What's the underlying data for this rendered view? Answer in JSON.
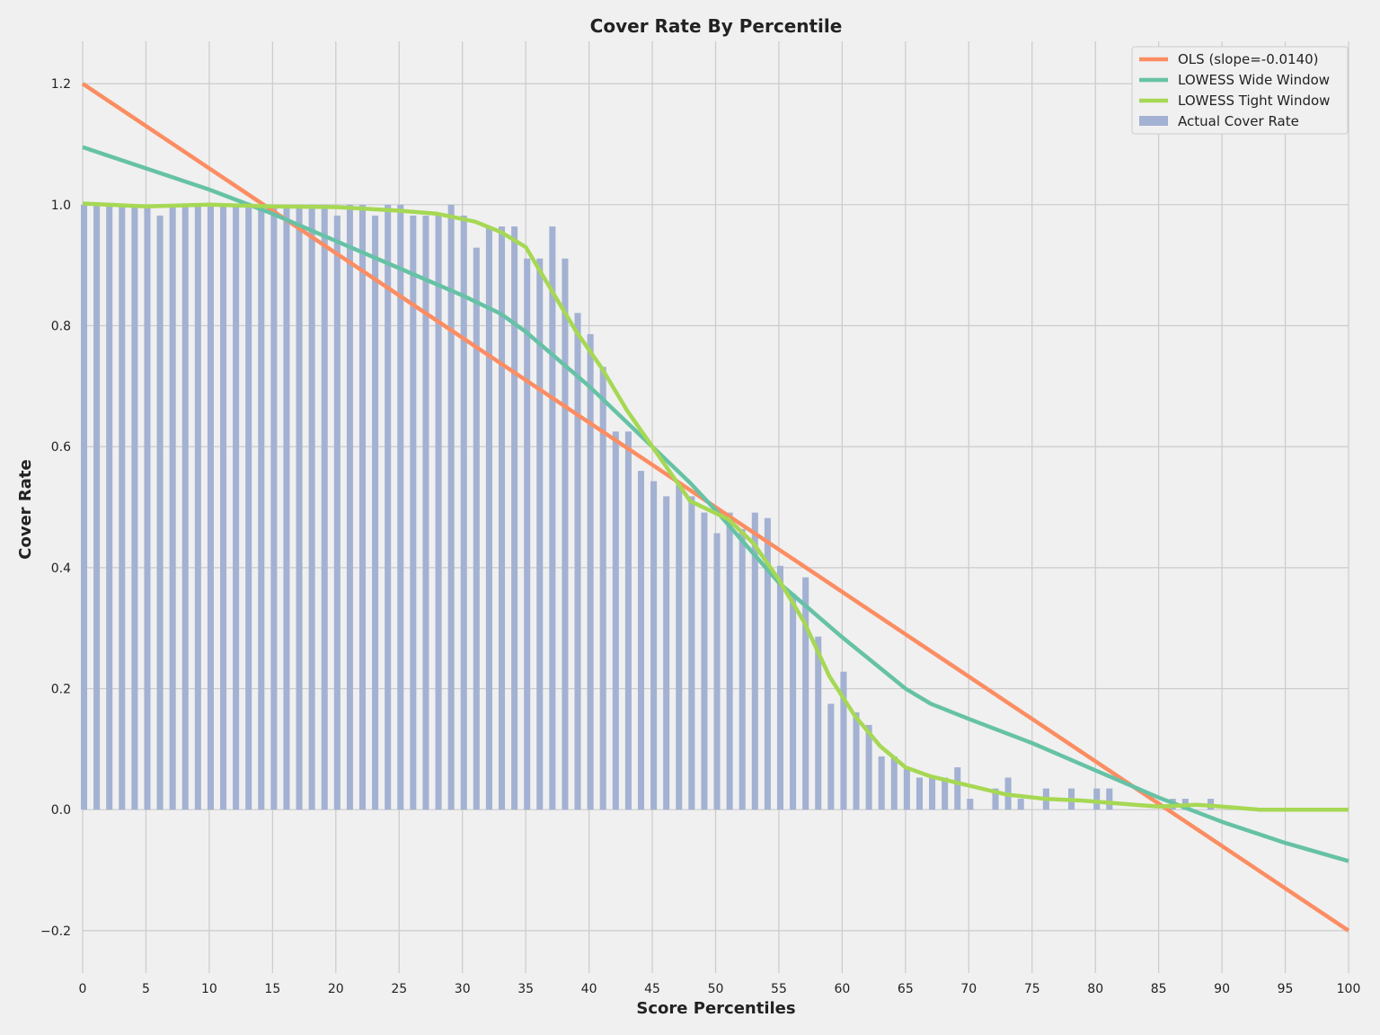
{
  "chart_data": {
    "type": "bar",
    "title": "Cover Rate By Percentile",
    "xlabel": "Score Percentiles",
    "ylabel": "Cover Rate",
    "xlim": [
      0,
      100
    ],
    "ylim": [
      -0.27,
      1.27
    ],
    "x_ticks": [
      0,
      5,
      10,
      15,
      20,
      25,
      30,
      35,
      40,
      45,
      50,
      55,
      60,
      65,
      70,
      75,
      80,
      85,
      90,
      95,
      100
    ],
    "x_tick_labels": [
      "0",
      "5",
      "10",
      "15",
      "20",
      "25",
      "30",
      "35",
      "40",
      "45",
      "50",
      "55",
      "60",
      "65",
      "70",
      "75",
      "80",
      "85",
      "90",
      "95",
      "100"
    ],
    "y_ticks": [
      -0.2,
      0.0,
      0.2,
      0.4,
      0.6,
      0.8,
      1.0,
      1.2
    ],
    "y_tick_labels": [
      "−0.2",
      "0.0",
      "0.2",
      "0.4",
      "0.6",
      "0.8",
      "1.0",
      "1.2"
    ],
    "grid": true,
    "legend_position": "top-right",
    "legend": [
      "OLS (slope=-0.0140)",
      "LOWESS Wide Window",
      "LOWESS Tight Window",
      "Actual Cover Rate"
    ],
    "bars": {
      "name": "Actual Cover Rate",
      "color": "#a3b1d2",
      "x": [
        0,
        1,
        2,
        3,
        4,
        5,
        6,
        7,
        8,
        9,
        10,
        11,
        12,
        13,
        14,
        15,
        16,
        17,
        18,
        19,
        20,
        21,
        22,
        23,
        24,
        25,
        26,
        27,
        28,
        29,
        30,
        31,
        32,
        33,
        34,
        35,
        36,
        37,
        38,
        39,
        40,
        41,
        42,
        43,
        44,
        45,
        46,
        47,
        48,
        49,
        50,
        51,
        52,
        53,
        54,
        55,
        56,
        57,
        58,
        59,
        60,
        61,
        62,
        63,
        64,
        65,
        66,
        67,
        68,
        69,
        70,
        71,
        72,
        73,
        74,
        75,
        76,
        77,
        78,
        79,
        80,
        81,
        82,
        83,
        84,
        85,
        86,
        87,
        88,
        89,
        90,
        91,
        92,
        93,
        94,
        95,
        96,
        97,
        98,
        99,
        100
      ],
      "values": [
        1.0,
        1.0,
        1.0,
        1.0,
        1.0,
        1.0,
        0.982,
        1.0,
        1.0,
        1.0,
        1.0,
        1.0,
        1.0,
        1.0,
        1.0,
        1.0,
        1.0,
        1.0,
        1.0,
        1.0,
        0.982,
        1.0,
        1.0,
        0.982,
        1.0,
        1.0,
        0.982,
        0.982,
        0.982,
        1.0,
        0.982,
        0.929,
        0.964,
        0.964,
        0.964,
        0.911,
        0.911,
        0.964,
        0.911,
        0.821,
        0.786,
        0.732,
        0.625,
        0.625,
        0.56,
        0.543,
        0.518,
        0.536,
        0.518,
        0.491,
        0.457,
        0.491,
        0.464,
        0.491,
        0.482,
        0.403,
        0.357,
        0.384,
        0.286,
        0.175,
        0.228,
        0.161,
        0.14,
        0.088,
        0.088,
        0.07,
        0.053,
        0.053,
        0.053,
        0.07,
        0.018,
        0.0,
        0.035,
        0.053,
        0.018,
        0.0,
        0.035,
        0.0,
        0.035,
        0.0,
        0.035,
        0.035,
        0.0,
        0.0,
        0.0,
        0.0,
        0.018,
        0.018,
        0.0,
        0.018,
        0.0,
        0.0,
        0.0,
        0.0,
        0.0,
        0.0,
        0.0,
        0.0,
        0.0,
        0.0,
        0.0
      ]
    },
    "series": [
      {
        "name": "OLS (slope=-0.0140)",
        "color": "#fc8d62",
        "x": [
          0,
          100
        ],
        "values": [
          1.2,
          -0.2
        ]
      },
      {
        "name": "LOWESS Wide Window",
        "color": "#66c2a5",
        "x": [
          0,
          5,
          10,
          15,
          20,
          25,
          30,
          33,
          35,
          40,
          45,
          48,
          50,
          55,
          60,
          65,
          67,
          70,
          75,
          80,
          85,
          90,
          95,
          100
        ],
        "values": [
          1.095,
          1.06,
          1.025,
          0.985,
          0.94,
          0.895,
          0.85,
          0.82,
          0.79,
          0.7,
          0.6,
          0.54,
          0.495,
          0.375,
          0.285,
          0.2,
          0.175,
          0.15,
          0.11,
          0.065,
          0.02,
          -0.02,
          -0.055,
          -0.085
        ]
      },
      {
        "name": "LOWESS Tight Window",
        "color": "#a6d854",
        "x": [
          0,
          5,
          10,
          15,
          20,
          25,
          28,
          31,
          33,
          35,
          37,
          39,
          41,
          43,
          45,
          47,
          48,
          50,
          51,
          53,
          55,
          57,
          59,
          61,
          63,
          65,
          67,
          70,
          73,
          76,
          79,
          82,
          85,
          88,
          90,
          93,
          100
        ],
        "values": [
          1.002,
          0.997,
          1.0,
          0.997,
          0.996,
          0.99,
          0.985,
          0.972,
          0.955,
          0.93,
          0.86,
          0.79,
          0.73,
          0.66,
          0.6,
          0.54,
          0.51,
          0.49,
          0.48,
          0.44,
          0.38,
          0.31,
          0.22,
          0.155,
          0.105,
          0.07,
          0.055,
          0.04,
          0.025,
          0.018,
          0.015,
          0.01,
          0.005,
          0.008,
          0.005,
          0.0,
          0.0
        ]
      }
    ]
  }
}
